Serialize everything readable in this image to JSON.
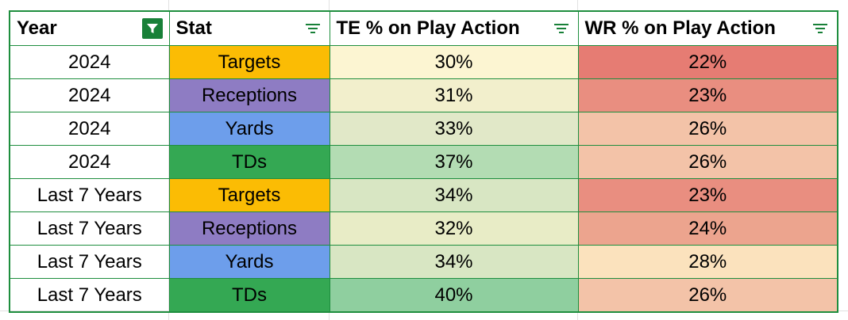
{
  "columns": [
    {
      "label": "Year",
      "filter": "active"
    },
    {
      "label": "Stat",
      "filter": "sort"
    },
    {
      "label": "TE % on Play Action",
      "filter": "sort"
    },
    {
      "label": "WR % on Play Action",
      "filter": "sort"
    }
  ],
  "rows": [
    {
      "year": "2024",
      "stat": "Targets",
      "te": "30%",
      "wr": "22%"
    },
    {
      "year": "2024",
      "stat": "Receptions",
      "te": "31%",
      "wr": "23%"
    },
    {
      "year": "2024",
      "stat": "Yards",
      "te": "33%",
      "wr": "26%"
    },
    {
      "year": "2024",
      "stat": "TDs",
      "te": "37%",
      "wr": "26%"
    },
    {
      "year": "Last 7 Years",
      "stat": "Targets",
      "te": "34%",
      "wr": "23%"
    },
    {
      "year": "Last 7 Years",
      "stat": "Receptions",
      "te": "32%",
      "wr": "24%"
    },
    {
      "year": "Last 7 Years",
      "stat": "Yards",
      "te": "34%",
      "wr": "28%"
    },
    {
      "year": "Last 7 Years",
      "stat": "TDs",
      "te": "40%",
      "wr": "26%"
    }
  ],
  "colors": {
    "border": "#1e8e3e",
    "filter_active": "#188038",
    "stat": {
      "Targets": "#fbbc04",
      "Receptions": "#8e7cc3",
      "Yards": "#6d9eeb",
      "TDs": "#34a853"
    },
    "te": [
      "#fcf5d2",
      "#f2efcc",
      "#e1e8c8",
      "#b3dcb3",
      "#d8e6c3",
      "#e8ecc6",
      "#d8e6c3",
      "#8fcf9f"
    ],
    "wr": [
      "#e67c73",
      "#e98e80",
      "#f3c3a8",
      "#f3c3a8",
      "#e98e80",
      "#eca48e",
      "#fbe2bd",
      "#f3c3a8"
    ]
  }
}
